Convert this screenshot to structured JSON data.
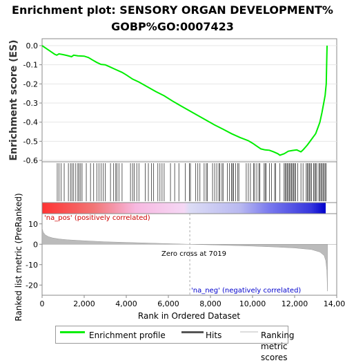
{
  "title_line1": "Enrichment plot: SENSORY ORGAN DEVELOPMENT%",
  "title_line2": "GOBP%GO:0007423",
  "chart_data": {
    "type": "line",
    "es_panel": {
      "ylabel": "Enrichment score (ES)",
      "ylim": [
        -0.6,
        0.0
      ],
      "yticks": [
        "0.0",
        "-0.1",
        "-0.2",
        "-0.3",
        "-0.4",
        "-0.5",
        "-0.6"
      ],
      "ytick_values": [
        0.0,
        -0.1,
        -0.2,
        -0.3,
        -0.4,
        -0.5,
        -0.6
      ],
      "line_color": "#00ee00",
      "profile": [
        [
          0,
          0.0
        ],
        [
          200,
          -0.015
        ],
        [
          400,
          -0.03
        ],
        [
          600,
          -0.045
        ],
        [
          700,
          -0.05
        ],
        [
          800,
          -0.043
        ],
        [
          1000,
          -0.047
        ],
        [
          1200,
          -0.052
        ],
        [
          1400,
          -0.058
        ],
        [
          1500,
          -0.05
        ],
        [
          1700,
          -0.053
        ],
        [
          2000,
          -0.055
        ],
        [
          2200,
          -0.062
        ],
        [
          2400,
          -0.075
        ],
        [
          2600,
          -0.088
        ],
        [
          2800,
          -0.098
        ],
        [
          3000,
          -0.1
        ],
        [
          3200,
          -0.11
        ],
        [
          3500,
          -0.125
        ],
        [
          3800,
          -0.14
        ],
        [
          4000,
          -0.153
        ],
        [
          4300,
          -0.175
        ],
        [
          4600,
          -0.19
        ],
        [
          5000,
          -0.215
        ],
        [
          5400,
          -0.24
        ],
        [
          5800,
          -0.262
        ],
        [
          6200,
          -0.29
        ],
        [
          6600,
          -0.315
        ],
        [
          7000,
          -0.34
        ],
        [
          7400,
          -0.365
        ],
        [
          7800,
          -0.39
        ],
        [
          8200,
          -0.415
        ],
        [
          8600,
          -0.437
        ],
        [
          9000,
          -0.46
        ],
        [
          9400,
          -0.48
        ],
        [
          9800,
          -0.497
        ],
        [
          10000,
          -0.51
        ],
        [
          10200,
          -0.525
        ],
        [
          10400,
          -0.54
        ],
        [
          10600,
          -0.545
        ],
        [
          10800,
          -0.547
        ],
        [
          11000,
          -0.555
        ],
        [
          11200,
          -0.565
        ],
        [
          11300,
          -0.573
        ],
        [
          11500,
          -0.565
        ],
        [
          11700,
          -0.552
        ],
        [
          11900,
          -0.548
        ],
        [
          12100,
          -0.545
        ],
        [
          12300,
          -0.555
        ],
        [
          12400,
          -0.545
        ],
        [
          12600,
          -0.52
        ],
        [
          12800,
          -0.49
        ],
        [
          13000,
          -0.46
        ],
        [
          13100,
          -0.43
        ],
        [
          13200,
          -0.4
        ],
        [
          13300,
          -0.35
        ],
        [
          13400,
          -0.29
        ],
        [
          13450,
          -0.26
        ],
        [
          13500,
          -0.2
        ],
        [
          13520,
          -0.1
        ],
        [
          13540,
          0.0
        ]
      ]
    },
    "hits": [
      720,
      800,
      900,
      1050,
      1250,
      1350,
      1420,
      1500,
      1600,
      1700,
      1760,
      1830,
      1900,
      2100,
      2300,
      2450,
      2600,
      2700,
      2800,
      2900,
      3000,
      3250,
      3400,
      3500,
      3560,
      3650,
      3800,
      4200,
      4300,
      4380,
      4500,
      4600,
      4900,
      5050,
      5200,
      5300,
      5500,
      5600,
      5700,
      5800,
      6100,
      6300,
      6500,
      6800,
      7000,
      7050,
      7300,
      7400,
      7500,
      7700,
      7800,
      7850,
      8100,
      8200,
      8300,
      8400,
      8450,
      8550,
      8600,
      8800,
      8900,
      9000,
      9050,
      9100,
      9200,
      9300,
      9350,
      9700,
      9800,
      9900,
      10050,
      10100,
      10200,
      10300,
      10350,
      10550,
      10600,
      10650,
      10800,
      10900,
      11050,
      11100,
      11300,
      11500,
      11550,
      11600,
      11650,
      11700,
      11750,
      11800,
      11850,
      11900,
      11950,
      12000,
      12050,
      12150,
      12300,
      12400,
      12550,
      12600,
      12650,
      12700,
      12750,
      12800,
      12900,
      12950,
      13000,
      13050,
      13150,
      13200,
      13250,
      13300,
      13350,
      13400,
      13450,
      13500
    ],
    "metric_panel": {
      "ylabel": "Ranked list metric (PreRanked)",
      "ylim": [
        -25,
        15
      ],
      "yticks": [
        "10",
        "0",
        "-10",
        "-20"
      ],
      "ytick_values": [
        10,
        0,
        -10,
        -20
      ],
      "curve": [
        [
          0,
          8
        ],
        [
          50,
          6
        ],
        [
          150,
          4.6
        ],
        [
          300,
          3.7
        ],
        [
          500,
          3.1
        ],
        [
          800,
          2.6
        ],
        [
          1200,
          2.2
        ],
        [
          2000,
          1.7
        ],
        [
          3000,
          1.2
        ],
        [
          4000,
          0.9
        ],
        [
          5000,
          0.6
        ],
        [
          6000,
          0.3
        ],
        [
          7019,
          0.0
        ],
        [
          8000,
          -0.3
        ],
        [
          9000,
          -0.6
        ],
        [
          10000,
          -0.9
        ],
        [
          11000,
          -1.3
        ],
        [
          12000,
          -1.8
        ],
        [
          12800,
          -2.6
        ],
        [
          13200,
          -3.8
        ],
        [
          13400,
          -5.5
        ],
        [
          13480,
          -8
        ],
        [
          13530,
          -13
        ],
        [
          13560,
          -23
        ]
      ],
      "zero_cross_label": "Zero cross at 7019",
      "zero_cross": 7019,
      "pos_label": "'na_pos' (positively correlated)",
      "neg_label": "'na_neg' (negatively correlated)"
    },
    "xlabel": "Rank in Ordered Dataset",
    "xlim": [
      0,
      14000
    ],
    "xticks": [
      "0",
      "2,000",
      "4,000",
      "6,000",
      "8,000",
      "10,000",
      "12,000",
      "14,000"
    ],
    "xtick_values": [
      0,
      2000,
      4000,
      6000,
      8000,
      10000,
      12000,
      14000
    ],
    "total_ranks": 13560
  },
  "legend": {
    "items": [
      {
        "label": "Enrichment profile",
        "color": "#00ee00"
      },
      {
        "label": "Hits",
        "color": "#555555"
      },
      {
        "label": "Ranking metric scores",
        "color": "#c0c0c0"
      }
    ]
  }
}
